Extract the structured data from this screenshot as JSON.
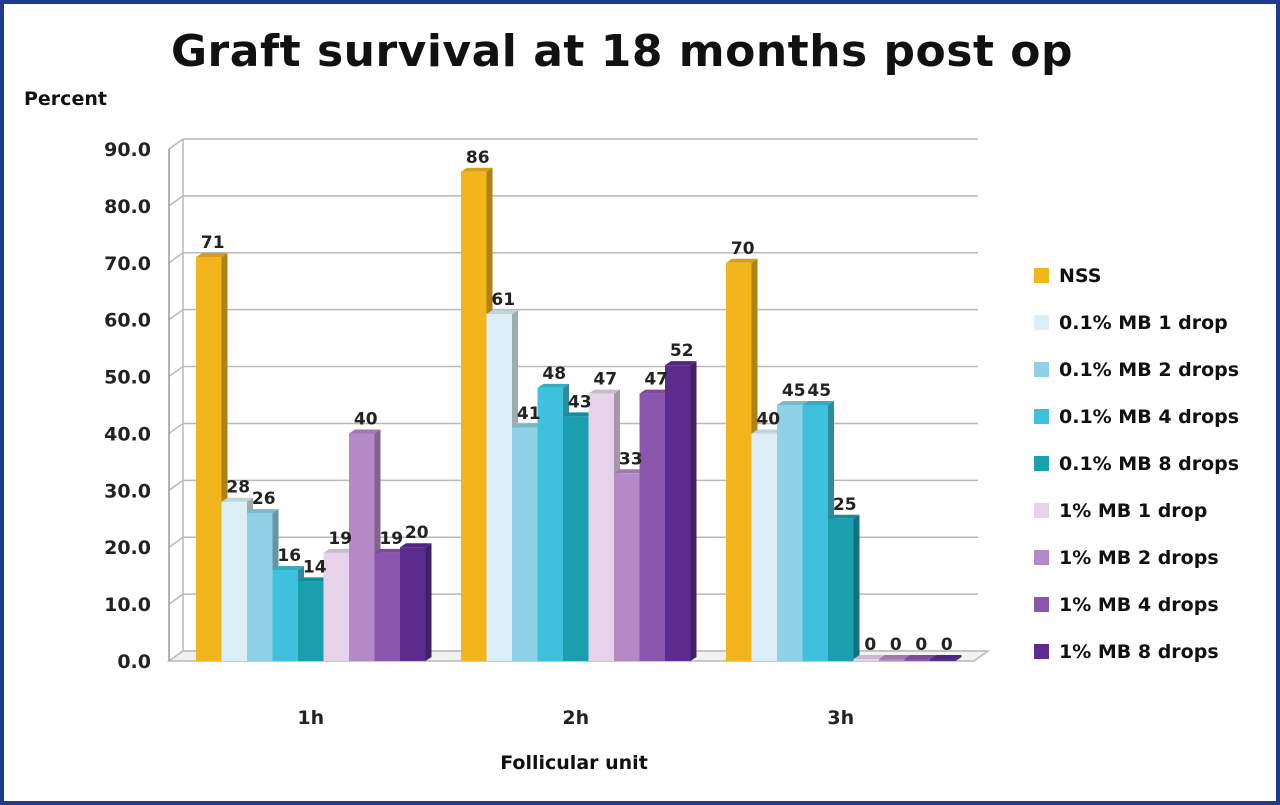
{
  "chart_data": {
    "type": "bar",
    "title": "Graft survival at 18 months post op",
    "ylabel": "Percent",
    "xlabel": "Follicular unit",
    "ylim": [
      0,
      90
    ],
    "yticks": [
      "0.0",
      "10.0",
      "20.0",
      "30.0",
      "40.0",
      "50.0",
      "60.0",
      "70.0",
      "80.0",
      "90.0"
    ],
    "categories": [
      "1h",
      "2h",
      "3h"
    ],
    "grid": true,
    "legend_position": "right",
    "series": [
      {
        "name": "NSS",
        "color": "#f2b51b",
        "values": [
          71,
          86,
          70
        ],
        "labels": [
          "71",
          "86",
          "70"
        ]
      },
      {
        "name": "0.1% MB 1 drop",
        "color": "#dceff7",
        "values": [
          28,
          61,
          40
        ],
        "labels": [
          "28",
          "61",
          "40"
        ]
      },
      {
        "name": "0.1% MB 2 drops",
        "color": "#8ed0e6",
        "values": [
          26,
          41,
          45
        ],
        "labels": [
          "26",
          "41",
          "45"
        ]
      },
      {
        "name": "0.1% MB 4 drops",
        "color": "#3ec1dc",
        "values": [
          16,
          48,
          45
        ],
        "labels": [
          "16",
          "48",
          "45"
        ]
      },
      {
        "name": "0.1% MB 8 drops",
        "color": "#1a9fae",
        "values": [
          14,
          43,
          25
        ],
        "labels": [
          "14",
          "43",
          "25"
        ]
      },
      {
        "name": "1% MB 1 drop",
        "color": "#e6d3ea",
        "values": [
          19,
          47,
          0
        ],
        "labels": [
          "19",
          "47",
          "0"
        ]
      },
      {
        "name": "1% MB 2 drops",
        "color": "#b48ac6",
        "values": [
          40,
          33,
          0
        ],
        "labels": [
          "40",
          "33",
          "0"
        ]
      },
      {
        "name": "1% MB 4 drops",
        "color": "#8a55ad",
        "values": [
          19,
          47,
          0
        ],
        "labels": [
          "19",
          "47",
          "0"
        ]
      },
      {
        "name": "1% MB 8 drops",
        "color": "#5b2c8e",
        "values": [
          20,
          52,
          0
        ],
        "labels": [
          "20",
          "52",
          "0"
        ]
      }
    ]
  }
}
